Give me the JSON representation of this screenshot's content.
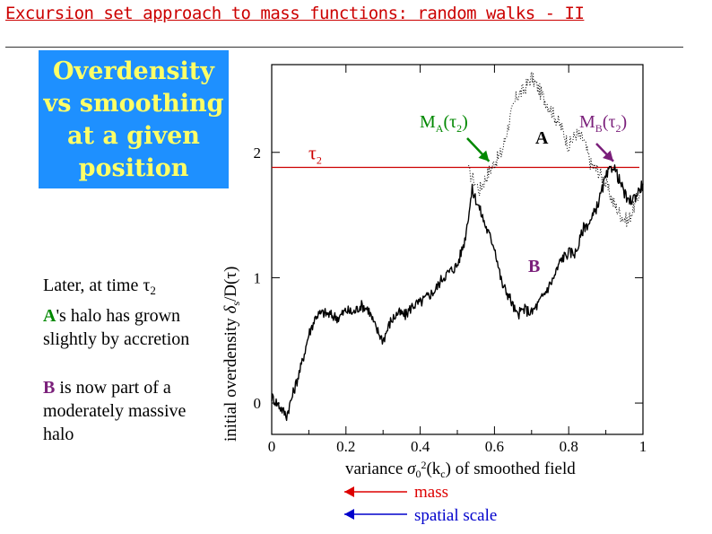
{
  "title": "Excursion set approach to mass functions: random walks - II",
  "callout": {
    "lines": [
      "Overdensity",
      "vs  smoothing",
      "at a given",
      "position"
    ]
  },
  "notes": {
    "line1_text": "Later, at  time ",
    "line1_tau": "τ",
    "line1_sub": "2",
    "line2_letter": "A",
    "line2_rest": "'s halo has grown",
    "line3": "slightly by accretion",
    "line4_letter": "B",
    "line4_rest": " is now part of a",
    "line5": "moderately  massive",
    "line6": "halo"
  },
  "colors": {
    "title": "#cc0000",
    "callout_bg": "#1e90ff",
    "callout_text": "#ffff66",
    "threshold": "#cc0000",
    "marker_green": "#008800",
    "marker_purple": "#7a1f7a",
    "mass_arrow": "#dd0000",
    "spatial_arrow": "#0000cc"
  },
  "chart_data": {
    "type": "line",
    "xlabel_pre": "variance  ",
    "xlabel_sym": "σ",
    "xlabel_sub": "0",
    "xlabel_sup": "2",
    "xlabel_arg": "(k",
    "xlabel_argsub": "c",
    "xlabel_post": ")  of smoothed field",
    "ylabel_pre": "initial overdensity ",
    "ylabel_sym": "δ",
    "ylabel_sub": "s",
    "ylabel_post": "/D(τ)",
    "xlim": [
      0,
      1
    ],
    "ylim": [
      -0.25,
      2.7
    ],
    "x_ticks": [
      "0",
      "0.2",
      "0.4",
      "0.6",
      "0.8",
      "1"
    ],
    "y_ticks": [
      "0",
      "1",
      "2"
    ],
    "threshold": {
      "value": 1.88,
      "label": "τ",
      "label_sub": "2"
    },
    "series": [
      {
        "name": "A",
        "style": "dotted",
        "x": [
          0.53,
          0.56,
          0.58,
          0.6,
          0.62,
          0.64,
          0.66,
          0.68,
          0.7,
          0.72,
          0.74,
          0.76,
          0.78,
          0.8,
          0.82,
          0.84,
          0.86,
          0.88,
          0.9,
          0.92,
          0.94,
          0.96,
          0.98,
          1.0
        ],
        "y": [
          1.85,
          1.7,
          1.82,
          1.92,
          2.0,
          2.25,
          2.45,
          2.5,
          2.6,
          2.5,
          2.4,
          2.3,
          2.2,
          2.05,
          2.15,
          2.1,
          1.9,
          1.85,
          1.75,
          1.6,
          1.5,
          1.45,
          1.6,
          1.75
        ]
      },
      {
        "name": "B",
        "style": "solid",
        "x": [
          0.0,
          0.02,
          0.04,
          0.06,
          0.08,
          0.1,
          0.12,
          0.14,
          0.16,
          0.18,
          0.2,
          0.22,
          0.24,
          0.26,
          0.28,
          0.3,
          0.32,
          0.34,
          0.36,
          0.38,
          0.4,
          0.42,
          0.44,
          0.46,
          0.48,
          0.5,
          0.52,
          0.54,
          0.56,
          0.58,
          0.6,
          0.62,
          0.64,
          0.66,
          0.68,
          0.7,
          0.72,
          0.74,
          0.76,
          0.78,
          0.8,
          0.82,
          0.84,
          0.86,
          0.88,
          0.9,
          0.92,
          0.94,
          0.96,
          0.98,
          1.0
        ],
        "y": [
          0.05,
          -0.02,
          -0.1,
          0.1,
          0.3,
          0.55,
          0.7,
          0.72,
          0.7,
          0.68,
          0.74,
          0.72,
          0.78,
          0.75,
          0.6,
          0.5,
          0.65,
          0.72,
          0.7,
          0.78,
          0.8,
          0.85,
          0.9,
          1.0,
          1.05,
          1.1,
          1.3,
          1.7,
          1.55,
          1.38,
          1.25,
          0.95,
          0.85,
          0.7,
          0.75,
          0.72,
          0.8,
          0.9,
          1.0,
          1.15,
          1.2,
          1.2,
          1.4,
          1.45,
          1.6,
          1.8,
          1.9,
          1.75,
          1.6,
          1.65,
          1.75
        ]
      }
    ],
    "annotations": {
      "label_A": "A",
      "label_B": "B",
      "ma_main": "M",
      "ma_sub": "A",
      "ma_arg": "(τ",
      "ma_argsub": "2",
      "ma_close": ")",
      "mb_main": "M",
      "mb_sub": "B",
      "mb_arg": "(τ",
      "mb_argsub": "2",
      "mb_close": ")",
      "ma_marker": {
        "x": 0.6,
        "y": 1.9
      },
      "mb_marker": {
        "x": 0.93,
        "y": 1.9
      }
    },
    "legend": {
      "mass": "mass",
      "spatial": "spatial scale"
    }
  }
}
